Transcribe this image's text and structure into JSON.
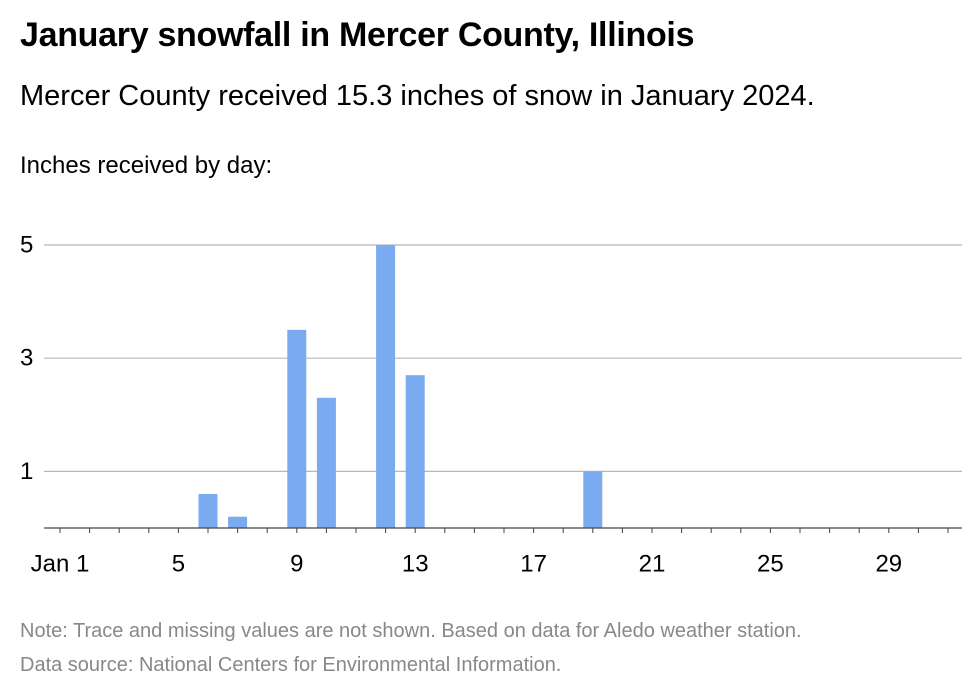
{
  "title": "January snowfall in Mercer County, Illinois",
  "subtitle": "Mercer County received 15.3 inches of snow in January 2024.",
  "notes": {
    "note": "Note: Trace and missing values are not shown. Based on data for Aledo weather station.",
    "source": "Data source: National Centers for Environmental Information."
  },
  "colors": {
    "bar": "#7aaaf0",
    "grid": "#b8b8b8",
    "axis": "#444444"
  },
  "chart_data": {
    "type": "bar",
    "ylabel": "Inches received by day:",
    "xlim": [
      1,
      31
    ],
    "ylim": [
      0,
      5
    ],
    "xticks": [
      1,
      5,
      9,
      13,
      17,
      21,
      25,
      29
    ],
    "xtick_labels": [
      "Jan 1",
      "5",
      "9",
      "13",
      "17",
      "21",
      "25",
      "29"
    ],
    "yticks": [
      1,
      3,
      5
    ],
    "ytick_labels": [
      "1",
      "3",
      "5"
    ],
    "x": [
      6,
      7,
      9,
      10,
      12,
      13,
      19
    ],
    "values": [
      0.6,
      0.2,
      3.5,
      2.3,
      5.0,
      2.7,
      1.0
    ],
    "grid": true
  }
}
